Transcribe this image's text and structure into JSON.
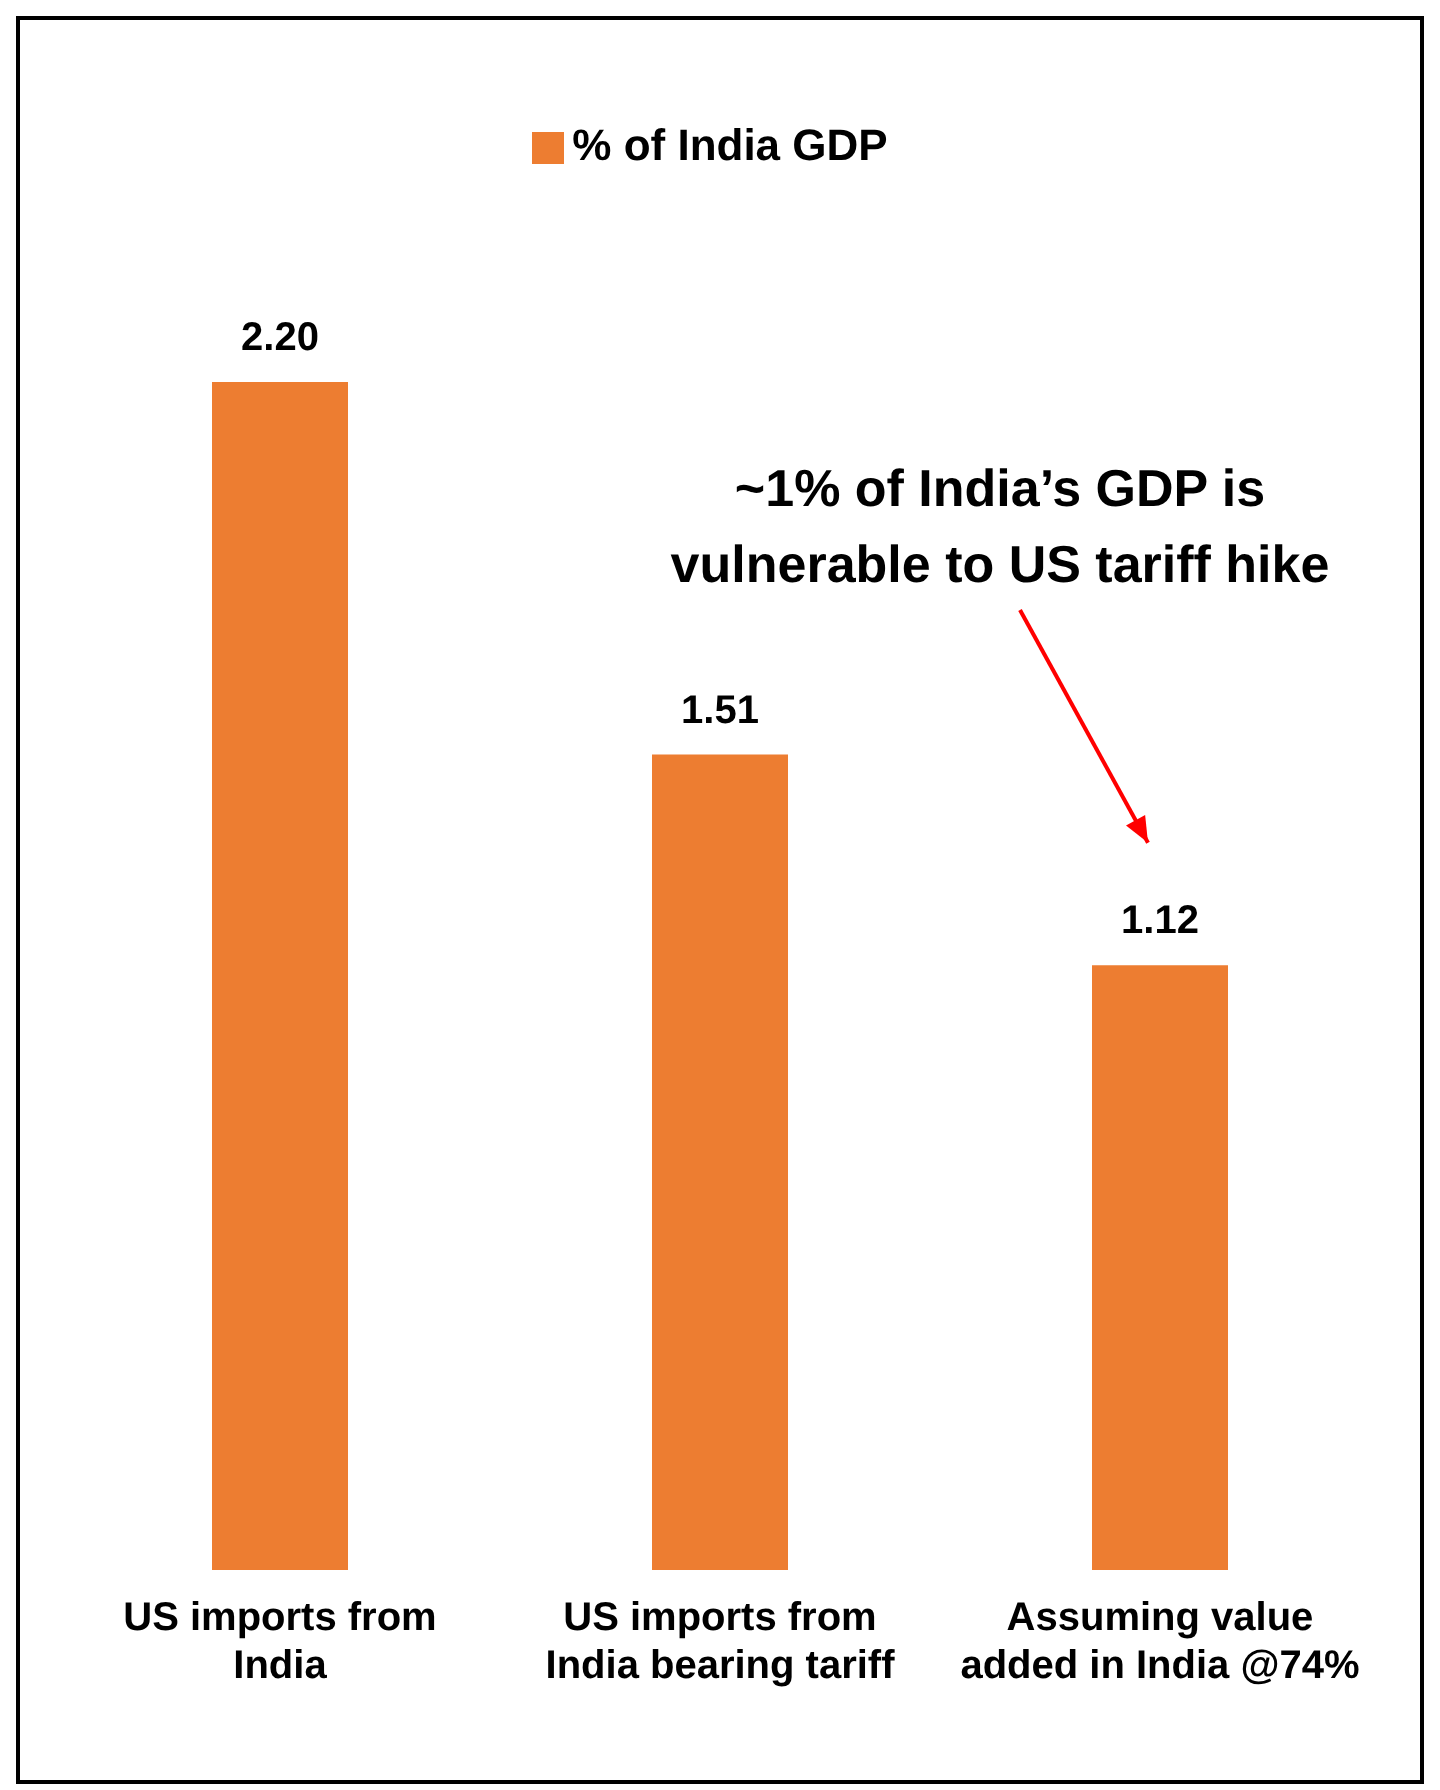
{
  "chart_data": {
    "type": "bar",
    "categories": [
      "US imports from India",
      "US imports from India bearing tariff",
      "Assuming value added in India @74%"
    ],
    "series": [
      {
        "name": "% of India GDP",
        "color": "#ed7d31",
        "values": [
          2.2,
          1.51,
          1.12
        ],
        "value_labels": [
          "2.20",
          "1.51",
          "1.12"
        ]
      }
    ],
    "legend": "top",
    "annotations": [
      "~1% of India’s GDP is vulnerable to US tariff hike"
    ]
  }
}
